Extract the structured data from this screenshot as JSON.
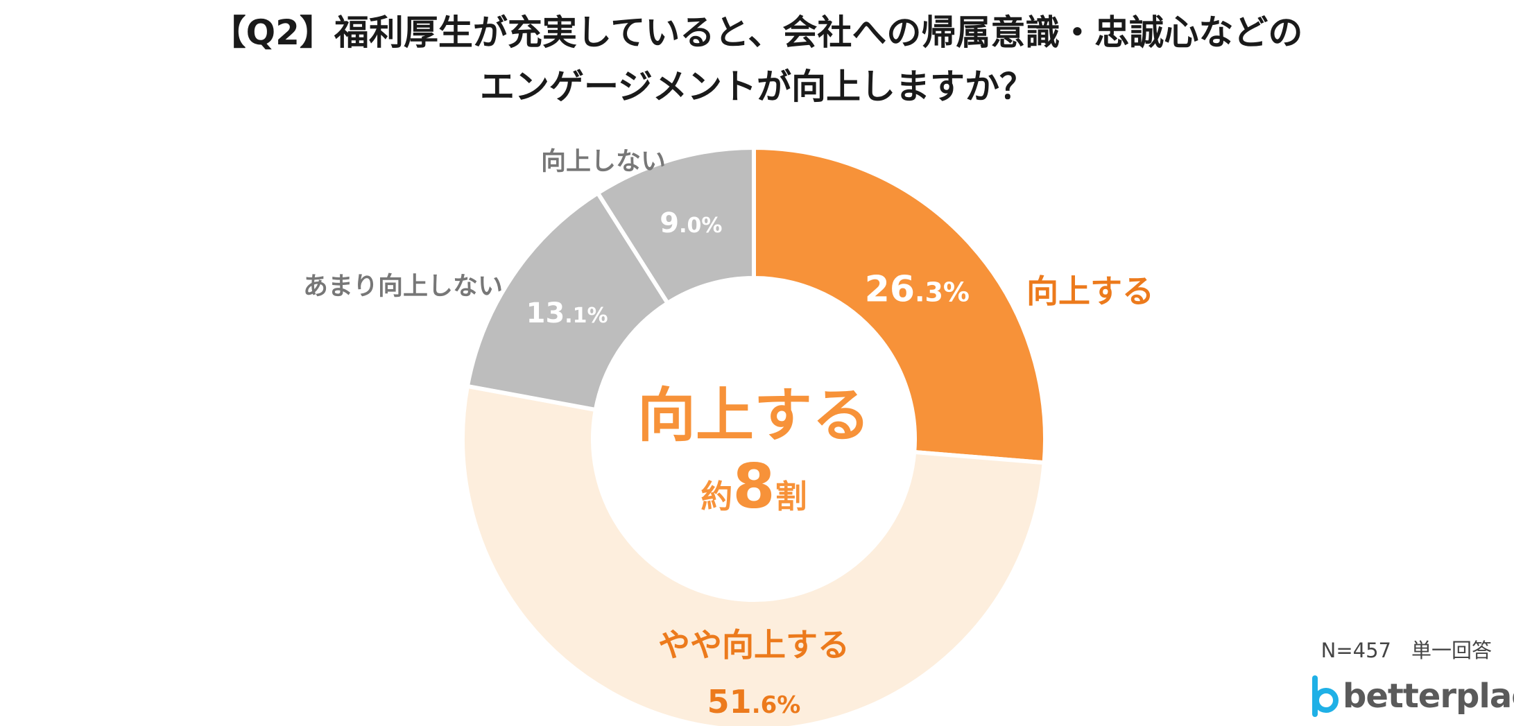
{
  "title": {
    "line1": "【Q2】福利厚生が充実していると、会社への帰属意識・忠誠心などの",
    "line2": "エンゲージメントが向上しますか？"
  },
  "center": {
    "line1": "向上する",
    "prefix": "約",
    "number": "8",
    "suffix": "割"
  },
  "note": "N=457　単一回答",
  "logo": {
    "text": "betterplace",
    "mark": "betterplace-logo-icon"
  },
  "colors": {
    "strong": "#f79239",
    "light": "#fdeedd",
    "gray": "#bdbdbd",
    "orange_text": "#ec7a1c",
    "gray_text": "#777777",
    "logo_blue": "#1fb0e6"
  },
  "chart_data": {
    "type": "pie",
    "variant": "donut",
    "title": "【Q2】福利厚生が充実していると、会社への帰属意識・忠誠心などのエンゲージメントが向上しますか？",
    "start": "top",
    "direction": "clockwise",
    "slices": [
      {
        "label": "向上する",
        "value": 26.3,
        "int": "26",
        "dec": ".3%",
        "color": "#f79239"
      },
      {
        "label": "やや向上する",
        "value": 51.6,
        "int": "51",
        "dec": ".6%",
        "color": "#fdeedd"
      },
      {
        "label": "あまり向上しない",
        "value": 13.1,
        "int": "13",
        "dec": ".1%",
        "color": "#bdbdbd"
      },
      {
        "label": "向上しない",
        "value": 9.0,
        "int": "9",
        "dec": ".0%",
        "color": "#bdbdbd"
      }
    ]
  }
}
